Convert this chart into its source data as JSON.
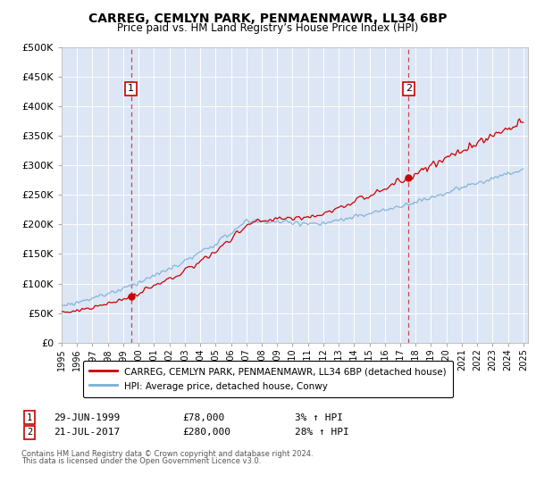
{
  "title": "CARREG, CEMLYN PARK, PENMAENMAWR, LL34 6BP",
  "subtitle": "Price paid vs. HM Land Registry’s House Price Index (HPI)",
  "ylim": [
    0,
    500000
  ],
  "yticks": [
    0,
    50000,
    100000,
    150000,
    200000,
    250000,
    300000,
    350000,
    400000,
    450000,
    500000
  ],
  "ytick_labels": [
    "£0",
    "£50K",
    "£100K",
    "£150K",
    "£200K",
    "£250K",
    "£300K",
    "£350K",
    "£400K",
    "£450K",
    "£500K"
  ],
  "plot_bg_color": "#dce6f5",
  "grid_color": "#ffffff",
  "red_line_color": "#cc0000",
  "blue_line_color": "#7bafd4",
  "legend_label1": "CARREG, CEMLYN PARK, PENMAENMAWR, LL34 6BP (detached house)",
  "legend_label2": "HPI: Average price, detached house, Conwy",
  "sale1_year": 1999.5,
  "sale1_value": 78000,
  "sale2_year": 2017.55,
  "sale2_value": 280000,
  "footnote3": "Contains HM Land Registry data © Crown copyright and database right 2024.",
  "footnote4": "This data is licensed under the Open Government Licence v3.0."
}
